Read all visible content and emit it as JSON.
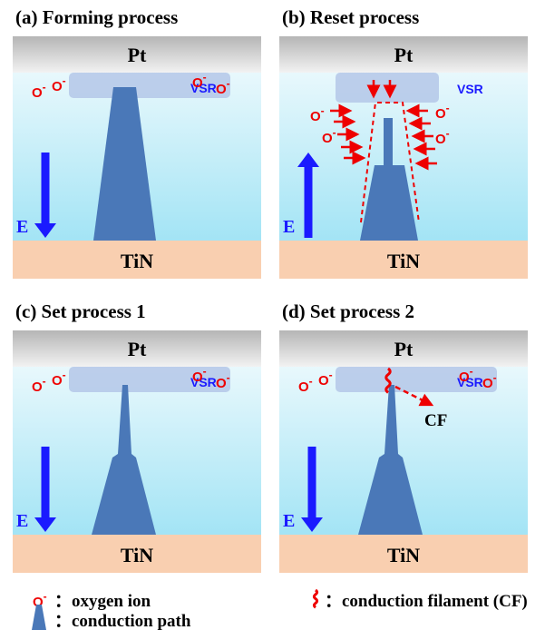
{
  "panels": [
    {
      "title": "(a) Forming process",
      "top": "Pt",
      "bottom": "TiN",
      "vsr": "VSR",
      "field": "E"
    },
    {
      "title": "(b) Reset process",
      "top": "Pt",
      "bottom": "TiN",
      "vsr": "VSR",
      "field": "E"
    },
    {
      "title": "(c) Set process 1",
      "top": "Pt",
      "bottom": "TiN",
      "vsr": "VSR",
      "field": "E"
    },
    {
      "title": "(d) Set process 2",
      "top": "Pt",
      "bottom": "TiN",
      "vsr": "VSR",
      "field": "E",
      "note": "CF"
    }
  ],
  "ion": {
    "symbol": "O",
    "charge": "-"
  },
  "legend": {
    "ion": "：oxygen ion",
    "path": "：conduction path",
    "filament": "：conduction filament (CF)"
  }
}
